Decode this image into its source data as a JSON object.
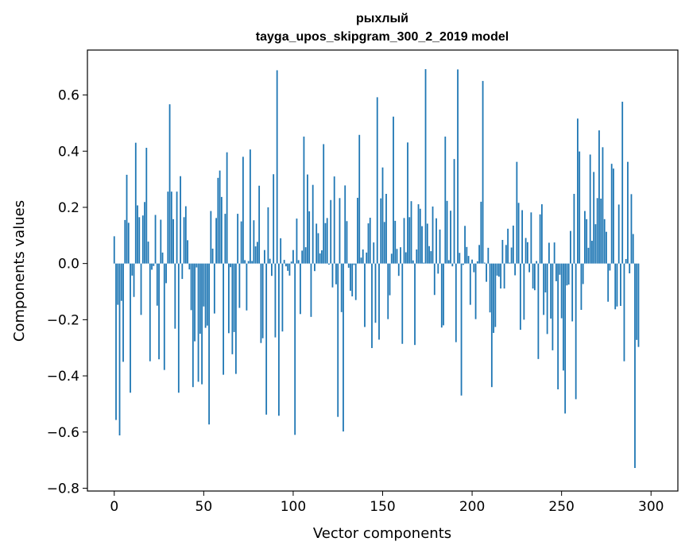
{
  "chart_data": {
    "type": "bar",
    "title": "рыхлый",
    "subtitle": "tayga_upos_skipgram_300_2_2019 model",
    "xlabel": "Vector components",
    "ylabel": "Components values",
    "xlim": [
      -15,
      315
    ],
    "ylim": [
      -0.81,
      0.76
    ],
    "xticks": [
      0,
      50,
      100,
      150,
      200,
      250,
      300
    ],
    "xtick_labels": [
      "0",
      "50",
      "100",
      "150",
      "200",
      "250",
      "300"
    ],
    "yticks": [
      -0.8,
      -0.6,
      -0.4,
      -0.2,
      0.0,
      0.2,
      0.4,
      0.6
    ],
    "ytick_labels": [
      "−0.8",
      "−0.6",
      "−0.4",
      "−0.2",
      "0.0",
      "0.2",
      "0.4",
      "0.6"
    ],
    "bar_color": "#1f77b4",
    "grid": false,
    "values": [
      0.097,
      -0.557,
      -0.147,
      -0.612,
      -0.133,
      -0.35,
      0.155,
      0.316,
      0.145,
      -0.46,
      -0.043,
      -0.119,
      0.43,
      0.207,
      0.165,
      -0.183,
      0.171,
      0.219,
      0.412,
      0.078,
      -0.348,
      -0.022,
      -0.009,
      0.173,
      -0.15,
      -0.341,
      0.156,
      0.039,
      -0.379,
      -0.07,
      0.256,
      0.567,
      0.256,
      0.158,
      -0.232,
      0.256,
      -0.46,
      0.311,
      -0.055,
      0.165,
      0.204,
      0.083,
      -0.021,
      -0.166,
      -0.44,
      -0.277,
      -0.014,
      -0.421,
      -0.25,
      -0.43,
      -0.153,
      -0.229,
      -0.221,
      -0.573,
      0.187,
      0.053,
      -0.178,
      0.162,
      0.305,
      0.331,
      0.237,
      -0.396,
      0.177,
      0.396,
      -0.248,
      -0.013,
      -0.323,
      -0.244,
      -0.393,
      0.177,
      -0.158,
      0.15,
      0.38,
      0.012,
      -0.167,
      0.009,
      0.406,
      0.009,
      0.154,
      0.061,
      0.077,
      0.277,
      -0.283,
      -0.266,
      0.048,
      -0.538,
      0.2,
      0.017,
      -0.044,
      0.318,
      -0.263,
      0.688,
      -0.542,
      0.09,
      -0.242,
      0.013,
      -0.01,
      -0.026,
      -0.043,
      0.007,
      0.048,
      -0.61,
      0.16,
      0.012,
      -0.18,
      0.046,
      0.452,
      0.058,
      0.317,
      0.186,
      -0.19,
      0.28,
      -0.027,
      0.142,
      0.108,
      0.036,
      0.047,
      0.425,
      0.144,
      0.162,
      -0.004,
      0.226,
      -0.085,
      0.31,
      -0.074,
      -0.546,
      0.233,
      -0.173,
      -0.598,
      0.278,
      0.151,
      -0.015,
      -0.097,
      -0.117,
      -0.005,
      -0.13,
      0.234,
      0.458,
      0.021,
      0.05,
      -0.226,
      0.039,
      0.143,
      0.163,
      -0.301,
      0.075,
      -0.211,
      0.592,
      -0.271,
      0.232,
      0.342,
      0.148,
      0.248,
      -0.198,
      -0.113,
      0.035,
      0.523,
      0.152,
      0.052,
      -0.044,
      0.058,
      -0.286,
      0.162,
      0.04,
      0.431,
      0.165,
      0.222,
      0.011,
      -0.29,
      0.05,
      0.211,
      0.195,
      0.133,
      0.003,
      0.692,
      0.142,
      0.062,
      0.044,
      0.203,
      -0.112,
      0.161,
      -0.036,
      0.121,
      -0.228,
      -0.22,
      0.452,
      0.223,
      0.012,
      0.188,
      -0.01,
      0.372,
      -0.28,
      0.691,
      0.038,
      -0.47,
      -0.005,
      0.134,
      0.059,
      0.027,
      -0.147,
      0.014,
      -0.031,
      -0.198,
      0.008,
      0.066,
      0.22,
      0.65,
      0.003,
      -0.065,
      0.056,
      -0.174,
      -0.44,
      -0.247,
      -0.226,
      -0.043,
      -0.047,
      -0.089,
      0.084,
      -0.089,
      0.066,
      0.124,
      0.003,
      0.057,
      0.135,
      -0.042,
      0.362,
      0.216,
      -0.236,
      0.19,
      -0.2,
      0.091,
      0.076,
      -0.031,
      0.182,
      -0.089,
      -0.095,
      0.009,
      -0.34,
      0.175,
      0.211,
      -0.183,
      -0.103,
      -0.251,
      0.074,
      -0.196,
      -0.309,
      0.075,
      -0.063,
      -0.448,
      -0.04,
      -0.195,
      -0.381,
      -0.534,
      -0.078,
      -0.075,
      0.116,
      -0.206,
      0.248,
      -0.483,
      0.516,
      0.399,
      -0.165,
      -0.073,
      0.187,
      0.158,
      0.056,
      0.388,
      0.081,
      0.326,
      0.14,
      0.233,
      0.474,
      0.231,
      0.414,
      0.158,
      0.113,
      -0.136,
      -0.025,
      0.355,
      0.338,
      -0.163,
      -0.153,
      0.21,
      -0.151,
      0.576,
      -0.348,
      0.016,
      0.362,
      -0.035,
      0.247,
      0.105,
      -0.728,
      -0.272,
      -0.297
    ]
  }
}
